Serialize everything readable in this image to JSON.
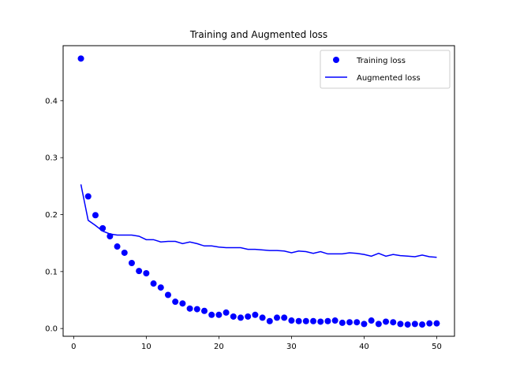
{
  "chart_data": {
    "type": "scatter",
    "title": "Training and Augmented loss",
    "xlabel": "",
    "ylabel": "",
    "xlim": [
      -1.45,
      52.45
    ],
    "ylim": [
      -0.0136,
      0.4966
    ],
    "xticks": [
      0,
      10,
      20,
      30,
      40,
      50
    ],
    "yticks": [
      0.0,
      0.1,
      0.2,
      0.3,
      0.4
    ],
    "ytick_labels": [
      "0.0",
      "0.1",
      "0.2",
      "0.3",
      "0.4"
    ],
    "grid": false,
    "legend_position": "top-right",
    "series": [
      {
        "name": "Training loss",
        "style": "markers",
        "color": "#0000ff",
        "x": [
          1,
          2,
          3,
          4,
          5,
          6,
          7,
          8,
          9,
          10,
          11,
          12,
          13,
          14,
          15,
          16,
          17,
          18,
          19,
          20,
          21,
          22,
          23,
          24,
          25,
          26,
          27,
          28,
          29,
          30,
          31,
          32,
          33,
          34,
          35,
          36,
          37,
          38,
          39,
          40,
          41,
          42,
          43,
          44,
          45,
          46,
          47,
          48,
          49,
          50
        ],
        "values": [
          0.474,
          0.232,
          0.199,
          0.176,
          0.162,
          0.144,
          0.133,
          0.115,
          0.101,
          0.097,
          0.079,
          0.072,
          0.059,
          0.047,
          0.044,
          0.035,
          0.034,
          0.031,
          0.024,
          0.024,
          0.028,
          0.021,
          0.019,
          0.021,
          0.024,
          0.019,
          0.013,
          0.019,
          0.019,
          0.014,
          0.013,
          0.013,
          0.013,
          0.012,
          0.013,
          0.014,
          0.01,
          0.011,
          0.011,
          0.008,
          0.014,
          0.008,
          0.012,
          0.011,
          0.008,
          0.007,
          0.008,
          0.007,
          0.009,
          0.009
        ]
      },
      {
        "name": "Augmented loss",
        "style": "line",
        "color": "#0000ff",
        "x": [
          1,
          2,
          3,
          4,
          5,
          6,
          7,
          8,
          9,
          10,
          11,
          12,
          13,
          14,
          15,
          16,
          17,
          18,
          19,
          20,
          21,
          22,
          23,
          24,
          25,
          26,
          27,
          28,
          29,
          30,
          31,
          32,
          33,
          34,
          35,
          36,
          37,
          38,
          39,
          40,
          41,
          42,
          43,
          44,
          45,
          46,
          47,
          48,
          49,
          50
        ],
        "values": [
          0.253,
          0.19,
          0.181,
          0.171,
          0.166,
          0.164,
          0.164,
          0.164,
          0.162,
          0.156,
          0.156,
          0.152,
          0.153,
          0.153,
          0.149,
          0.152,
          0.149,
          0.145,
          0.145,
          0.143,
          0.142,
          0.142,
          0.142,
          0.139,
          0.139,
          0.138,
          0.137,
          0.137,
          0.136,
          0.133,
          0.136,
          0.135,
          0.132,
          0.135,
          0.131,
          0.131,
          0.131,
          0.133,
          0.132,
          0.13,
          0.127,
          0.132,
          0.127,
          0.13,
          0.128,
          0.127,
          0.126,
          0.129,
          0.126,
          0.125
        ]
      }
    ]
  }
}
